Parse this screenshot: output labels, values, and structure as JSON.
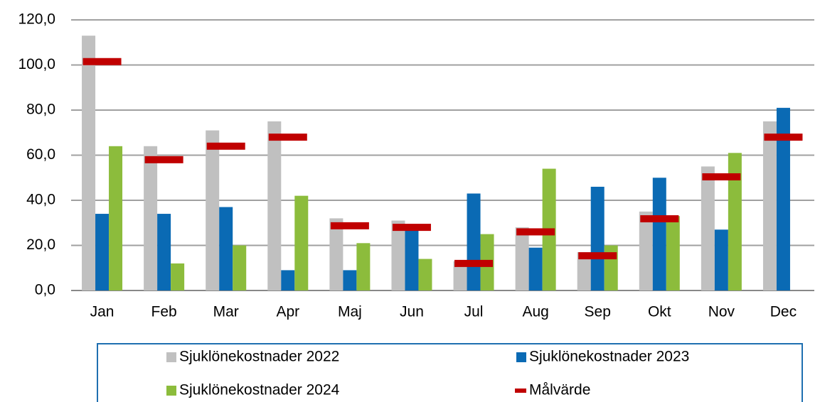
{
  "chart_data": {
    "type": "bar",
    "categories": [
      "Jan",
      "Feb",
      "Mar",
      "Apr",
      "Maj",
      "Jun",
      "Jul",
      "Aug",
      "Sep",
      "Okt",
      "Nov",
      "Dec"
    ],
    "series": [
      {
        "name": "Sjuklönekostnader 2022",
        "color": "#c0c0c0",
        "values": [
          113,
          64,
          71,
          75,
          32,
          31,
          13,
          28,
          17,
          35,
          55,
          75
        ]
      },
      {
        "name": "Sjuklönekostnader 2023",
        "color": "#0a6ab4",
        "values": [
          34,
          34,
          37,
          9,
          9,
          28,
          43,
          19,
          46,
          50,
          27,
          81
        ]
      },
      {
        "name": "Sjuklönekostnader 2024",
        "color": "#8cbc3c",
        "values": [
          64,
          12,
          20,
          42,
          21,
          14,
          25,
          54,
          20,
          33,
          61,
          null
        ]
      },
      {
        "name": "Målvärde",
        "color": "#c00000",
        "marker": "dash",
        "values": [
          101.5,
          58,
          64,
          68,
          28.7,
          28,
          12,
          26,
          15.4,
          31.8,
          50.4,
          68
        ]
      }
    ],
    "ylim": [
      0,
      120
    ],
    "yticks": [
      {
        "value": 0,
        "label": "0,0"
      },
      {
        "value": 20,
        "label": "20,0"
      },
      {
        "value": 40,
        "label": "40,0"
      },
      {
        "value": 60,
        "label": "60,0"
      },
      {
        "value": 80,
        "label": "80,0"
      },
      {
        "value": 100,
        "label": "100,0"
      },
      {
        "value": 120,
        "label": "120,0"
      }
    ],
    "grid": true,
    "legend": "bottom"
  }
}
